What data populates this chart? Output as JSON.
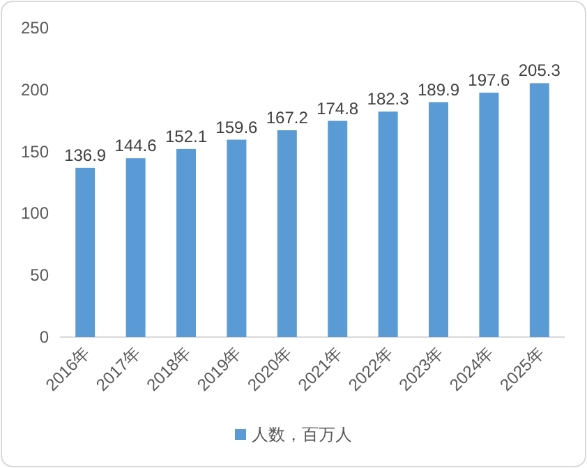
{
  "chart_data": {
    "type": "bar",
    "categories": [
      "2016年",
      "2017年",
      "2018年",
      "2019年",
      "2020年",
      "2021年",
      "2022年",
      "2023年",
      "2024年",
      "2025年"
    ],
    "series": [
      {
        "name": "人数，百万人",
        "color": "#5b9bd5",
        "values": [
          136.9,
          144.6,
          152.1,
          159.6,
          167.2,
          174.8,
          182.3,
          189.9,
          197.6,
          205.3
        ]
      }
    ],
    "ylim": [
      0,
      250
    ],
    "yticks": [
      0,
      50,
      100,
      150,
      200,
      250
    ],
    "data_labels": true,
    "legend": "bottom"
  }
}
